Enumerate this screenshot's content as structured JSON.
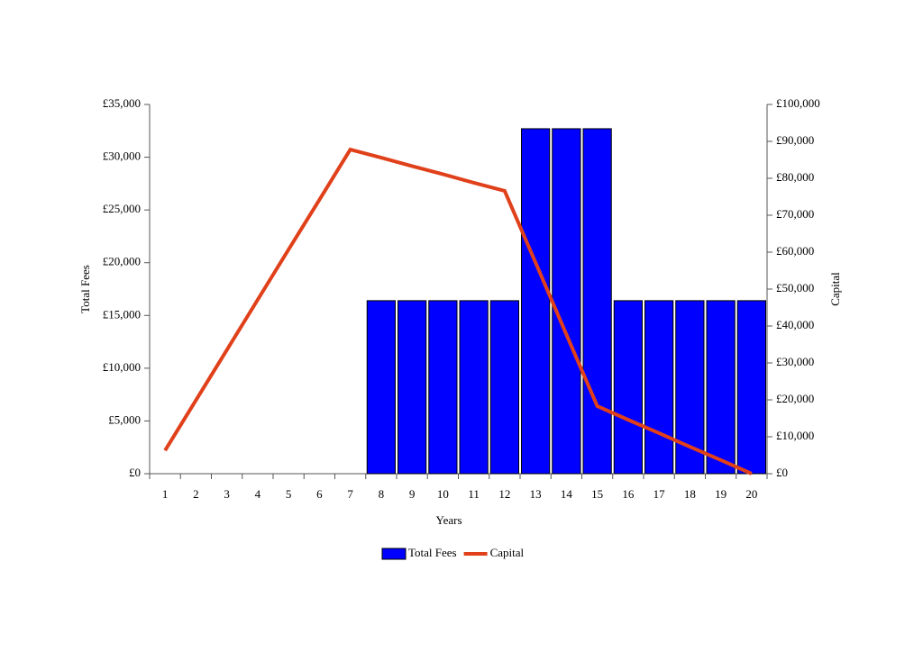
{
  "chart_data": {
    "type": "combo",
    "x_label": "Years",
    "y_label": "Total Fees",
    "y2_label": "Capital",
    "categories": [
      "1",
      "2",
      "3",
      "4",
      "5",
      "6",
      "7",
      "8",
      "9",
      "10",
      "11",
      "12",
      "13",
      "14",
      "15",
      "16",
      "17",
      "18",
      "19",
      "20"
    ],
    "series": [
      {
        "name": "Total Fees",
        "type": "bar",
        "color": "#0000ff",
        "values": [
          0,
          0,
          0,
          0,
          0,
          0,
          0,
          16400,
          16400,
          16400,
          16400,
          16400,
          32700,
          32700,
          32700,
          16400,
          16400,
          16400,
          16400,
          16400
        ]
      },
      {
        "name": "Capital",
        "type": "line",
        "color": "#e0401a",
        "axis": "y2",
        "values": [
          6300,
          19900,
          33500,
          47100,
          60700,
          74200,
          87800,
          85600,
          83300,
          81100,
          78800,
          76600,
          57200,
          37700,
          18300,
          14600,
          11000,
          7300,
          3700,
          0
        ]
      }
    ],
    "ylim": [
      0,
      35000
    ],
    "yticks": [
      {
        "value": 0,
        "label": "£0"
      },
      {
        "value": 5000,
        "label": "£5,000"
      },
      {
        "value": 10000,
        "label": "£10,000"
      },
      {
        "value": 15000,
        "label": "£15,000"
      },
      {
        "value": 20000,
        "label": "£20,000"
      },
      {
        "value": 25000,
        "label": "£25,000"
      },
      {
        "value": 30000,
        "label": "£30,000"
      },
      {
        "value": 35000,
        "label": "£35,000"
      }
    ],
    "y2lim": [
      0,
      100000
    ],
    "y2ticks": [
      {
        "value": 0,
        "label": "£0"
      },
      {
        "value": 10000,
        "label": "£10,000"
      },
      {
        "value": 20000,
        "label": "£20,000"
      },
      {
        "value": 30000,
        "label": "£30,000"
      },
      {
        "value": 40000,
        "label": "£40,000"
      },
      {
        "value": 50000,
        "label": "£50,000"
      },
      {
        "value": 60000,
        "label": "£60,000"
      },
      {
        "value": 70000,
        "label": "£70,000"
      },
      {
        "value": 80000,
        "label": "£80,000"
      },
      {
        "value": 90000,
        "label": "£90,000"
      },
      {
        "value": 100000,
        "label": "£100,000"
      }
    ],
    "legend": "bottom"
  }
}
